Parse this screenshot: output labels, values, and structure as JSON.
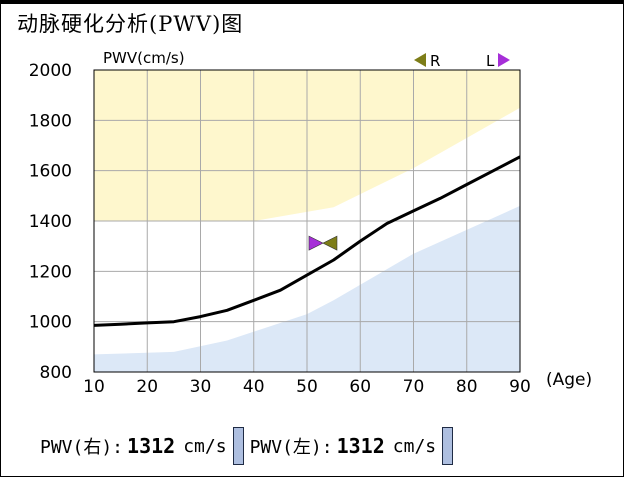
{
  "title": "动脉硬化分析(PWV)图",
  "chart_data": {
    "type": "line",
    "ylabel": "PWV(cm/s)",
    "xlabel": "(Age)",
    "xlim": [
      10,
      90
    ],
    "ylim": [
      800,
      2000
    ],
    "x_ticks": [
      "10",
      "20",
      "30",
      "40",
      "50",
      "60",
      "70",
      "80",
      "90"
    ],
    "y_ticks": [
      "2000",
      "1800",
      "1600",
      "1400",
      "1200",
      "1000",
      "800"
    ],
    "grid": true,
    "bands": [
      {
        "name": "orange",
        "color": "#f7c58f",
        "lower": [
          [
            10,
            1520
          ],
          [
            25,
            1525
          ],
          [
            45,
            1530
          ],
          [
            55,
            1565
          ],
          [
            70,
            1760
          ],
          [
            90,
            2000
          ]
        ]
      },
      {
        "name": "yellow",
        "color": "#fef7cd",
        "lower": [
          [
            10,
            1400
          ],
          [
            40,
            1400
          ],
          [
            55,
            1455
          ],
          [
            70,
            1610
          ],
          [
            90,
            1850
          ]
        ]
      },
      {
        "name": "blue",
        "color": "#dce8f7",
        "upper": [
          [
            10,
            870
          ],
          [
            25,
            880
          ],
          [
            35,
            925
          ],
          [
            50,
            1030
          ],
          [
            55,
            1085
          ],
          [
            70,
            1270
          ],
          [
            90,
            1460
          ]
        ]
      }
    ],
    "series": [
      {
        "values": [
          [
            10,
            985
          ],
          [
            15,
            990
          ],
          [
            20,
            995
          ],
          [
            25,
            1000
          ],
          [
            30,
            1020
          ],
          [
            35,
            1045
          ],
          [
            40,
            1085
          ],
          [
            45,
            1125
          ],
          [
            50,
            1185
          ],
          [
            55,
            1245
          ],
          [
            60,
            1320
          ],
          [
            65,
            1390
          ],
          [
            70,
            1440
          ],
          [
            75,
            1490
          ],
          [
            80,
            1545
          ],
          [
            85,
            1600
          ],
          [
            90,
            1655
          ]
        ]
      }
    ],
    "markers": {
      "R": {
        "label": "R",
        "color": "#7d7d18"
      },
      "L": {
        "label": "L",
        "color": "#a62fd8"
      },
      "point": {
        "x": 53,
        "y": 1312
      }
    }
  },
  "readout": {
    "right_label": "PWV(右):",
    "right_value": "1312",
    "right_unit": "cm/s",
    "left_label": "PWV(左):",
    "left_value": "1312",
    "left_unit": "cm/s"
  }
}
